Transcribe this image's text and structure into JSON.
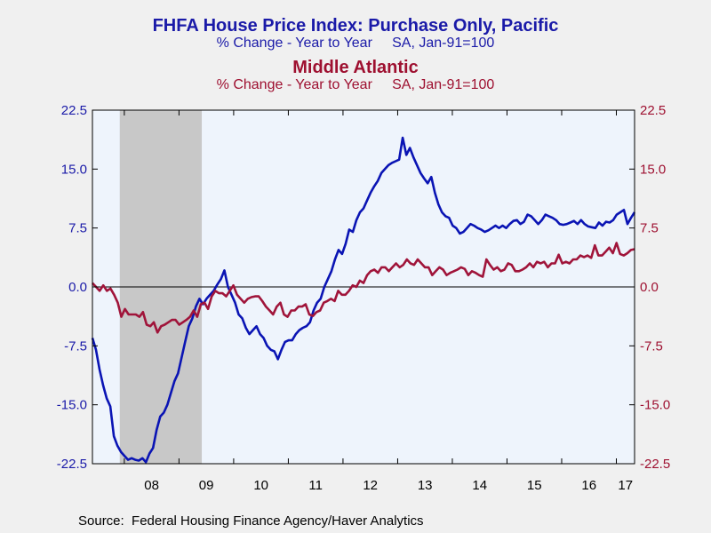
{
  "chart_data": {
    "type": "line",
    "title": "FHFA House Price Index: Purchase Only, Pacific",
    "subtitle": "% Change - Year to Year     SA, Jan-91=100",
    "title2": "Middle Atlantic",
    "subtitle2": "% Change - Year to Year     SA, Jan-91=100",
    "source": "Source:  Federal Housing Finance Agency/Haver Analytics",
    "ylim": [
      -22.5,
      22.5
    ],
    "y_ticks": [
      "22.5",
      "15.0",
      "7.5",
      "0.0",
      "-7.5",
      "-15.0",
      "-22.5"
    ],
    "y_ticks_right": [
      "22.5",
      "15.0",
      "7.5",
      "0.0",
      "-7.5",
      "-15.0",
      "-22.5"
    ],
    "x_labels": [
      "08",
      "09",
      "10",
      "11",
      "12",
      "13",
      "14",
      "15",
      "16",
      "17"
    ],
    "x_start": "2007-06",
    "x_end": "2017-05",
    "recession": [
      "2007-12",
      "2009-06"
    ],
    "grid": false,
    "colors": {
      "plot_bg": "#eef4fc",
      "recession": "#c8c8c8",
      "pacific": "#0a14b4",
      "middle_atlantic": "#a0143a"
    },
    "series": [
      {
        "name": "Pacific",
        "axis": "left",
        "color": "#0a14b4",
        "values": [
          -6.5,
          -8,
          -10.5,
          -12.5,
          -14.2,
          -15.2,
          -19,
          -20.2,
          -21,
          -21.5,
          -22,
          -21.8,
          -22,
          -22.1,
          -21.8,
          -22.3,
          -21.2,
          -20.5,
          -18.2,
          -16.5,
          -16,
          -15,
          -13.5,
          -12,
          -11,
          -9,
          -7,
          -5,
          -4,
          -2.5,
          -1.5,
          -2.2,
          -1.5,
          -1,
          -0.5,
          0.3,
          1,
          2.1,
          0,
          -1,
          -2,
          -3.5,
          -4,
          -5.2,
          -6,
          -5.5,
          -5,
          -6,
          -6.5,
          -7.5,
          -8,
          -8.2,
          -9.2,
          -8,
          -7,
          -6.8,
          -6.8,
          -6,
          -5.5,
          -5.2,
          -5,
          -4.5,
          -3,
          -2,
          -1.5,
          0,
          1,
          2,
          3.5,
          4.7,
          4.2,
          5.5,
          7.3,
          7,
          8.5,
          9.5,
          10,
          11,
          12,
          12.8,
          13.5,
          14.5,
          15,
          15.5,
          15.8,
          16,
          16.2,
          19,
          16.8,
          17.7,
          16.5,
          15.5,
          14.5,
          13.8,
          13.2,
          14,
          12,
          10.5,
          9.5,
          9,
          8.8,
          7.8,
          7.5,
          6.8,
          7,
          7.5,
          8,
          7.8,
          7.5,
          7.3,
          7,
          7.2,
          7.5,
          7.8,
          7.5,
          7.8,
          7.5,
          8,
          8.4,
          8.5,
          8,
          8.3,
          9.2,
          9,
          8.5,
          8,
          8.5,
          9.2,
          9,
          8.8,
          8.5,
          8,
          7.9,
          8,
          8.2,
          8.4,
          8,
          8.5,
          8,
          7.7,
          7.6,
          7.5,
          8.2,
          7.8,
          8.3,
          8.2,
          8.5,
          9.2,
          9.5,
          9.8,
          8,
          8.8,
          9.5
        ]
      },
      {
        "name": "Middle Atlantic",
        "axis": "right",
        "color": "#a0143a",
        "values": [
          0.5,
          0,
          -0.5,
          0.2,
          -0.5,
          -0.2,
          -1,
          -2,
          -3.8,
          -2.8,
          -3.5,
          -3.5,
          -3.5,
          -3.8,
          -3.2,
          -4.8,
          -5,
          -4.5,
          -5.8,
          -5,
          -4.8,
          -4.5,
          -4.2,
          -4.2,
          -4.8,
          -4.5,
          -4.2,
          -3.8,
          -3,
          -3.8,
          -2.2,
          -2,
          -2.8,
          -1.2,
          -0.5,
          -0.8,
          -0.8,
          -1.2,
          -0.5,
          0.2,
          -1,
          -1.5,
          -2,
          -1.5,
          -1.3,
          -1.2,
          -1.2,
          -1.8,
          -2.5,
          -3,
          -3.5,
          -2.5,
          -2,
          -3.5,
          -3.8,
          -3,
          -3,
          -2.5,
          -2.5,
          -2.2,
          -3.5,
          -3.7,
          -3.2,
          -3,
          -2,
          -1.8,
          -1.5,
          -1.8,
          -0.5,
          -1,
          -1,
          -0.5,
          0.2,
          0,
          0.8,
          0.5,
          1.5,
          2,
          2.2,
          1.8,
          2.5,
          2.5,
          2,
          2.5,
          3,
          2.5,
          2.8,
          3.5,
          3,
          2.8,
          3.5,
          3,
          2.5,
          2.5,
          1.5,
          2,
          2.5,
          2.2,
          1.5,
          1.8,
          2,
          2.2,
          2.5,
          2.3,
          1.5,
          2,
          1.8,
          1.5,
          1.3,
          3.5,
          2.8,
          2.2,
          2.5,
          2,
          2.2,
          3,
          2.8,
          2,
          2,
          2.2,
          2.5,
          3,
          2.5,
          3.2,
          3,
          3.2,
          2.5,
          3,
          3,
          4.1,
          3,
          3.2,
          3,
          3.5,
          3.5,
          4,
          3.8,
          4,
          3.7,
          5.3,
          4,
          4,
          4.5,
          5,
          4.3,
          5.6,
          4.2,
          4,
          4.3,
          4.7,
          4.8
        ]
      }
    ]
  }
}
